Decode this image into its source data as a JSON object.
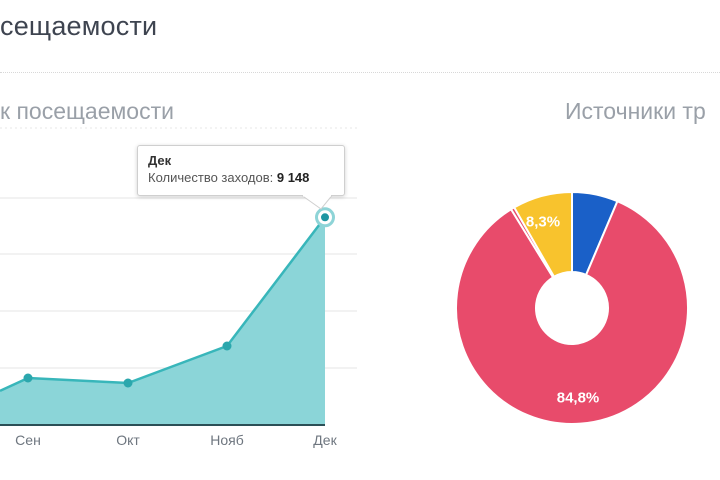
{
  "page": {
    "main_title_fragment": "сещаемости",
    "left_section_title_fragment": "к посещаемости",
    "right_section_title_fragment": "Источники тр"
  },
  "colors": {
    "title_text": "#3e4450",
    "section_text": "#9aa0a8",
    "month_text": "#6e767f",
    "divider": "#d8d8d8",
    "gridline": "#ededed",
    "teal_line": "#38b6ba",
    "teal_fill": "#8bd5d8",
    "teal_marker": "#2ba7ad",
    "axis_line": "#2b4f56",
    "tooltip_border": "#cfcfcf",
    "pie_pink": "#e84b6b",
    "pie_yellow": "#f8c32d",
    "pie_blue": "#1a60c8",
    "pie_label_text": "#ffffff"
  },
  "chart_data": [
    {
      "id": "visits-trend",
      "type": "area",
      "x_labels": [
        "Сен",
        "Окт",
        "Нояб",
        "Дек"
      ],
      "values": [
        2070,
        1850,
        3480,
        9148
      ],
      "edge_value": 1500,
      "ylim": [
        0,
        10000
      ],
      "grid": "horizontal",
      "legend": "none",
      "tooltip": {
        "month": "Дек",
        "label": "Количество заходов: ",
        "value": "9 148"
      }
    },
    {
      "id": "traffic-sources",
      "type": "pie",
      "donut": true,
      "start_angle_deg": 0,
      "legend": "none",
      "slices": [
        {
          "name": "blue-slice",
          "value": 6.4,
          "color": "#1a60c8",
          "label": ""
        },
        {
          "name": "pink-slice",
          "value": 84.8,
          "color": "#e84b6b",
          "label": "84,8%"
        },
        {
          "name": "pink-sliver-slice",
          "value": 0.5,
          "color": "#e84b6b",
          "label": ""
        },
        {
          "name": "yellow-slice",
          "value": 8.3,
          "color": "#f8c32d",
          "label": "8,3%"
        }
      ]
    }
  ]
}
